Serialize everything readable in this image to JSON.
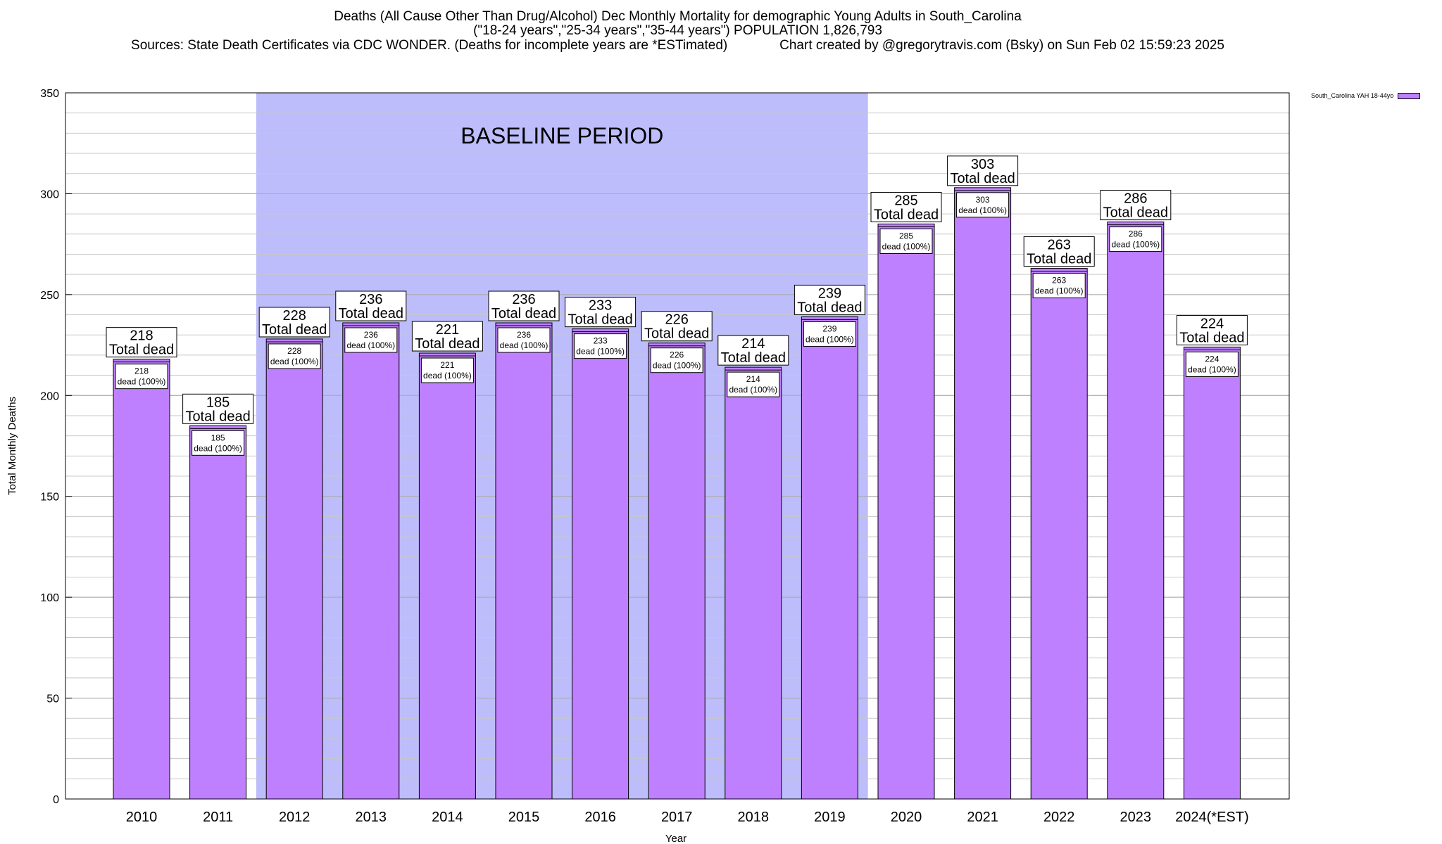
{
  "title": {
    "line1": "Deaths (All Cause Other Than Drug/Alcohol) Dec Monthly Mortality for demographic Young Adults in South_Carolina",
    "line2": "(\"18-24 years\",\"25-34 years\",\"35-44 years\") POPULATION 1,826,793",
    "line3": "Sources: State Death Certificates via CDC WONDER. (Deaths for incomplete years are *ESTimated)              Chart created by @gregorytravis.com (Bsky) on Sun Feb 02 15:59:23 2025"
  },
  "legend": {
    "label": "South_Carolina YAH 18-44yo"
  },
  "colors": {
    "bar": "#bf80ff",
    "baseline": "#bdbdfc",
    "grid": "#c8c8c8",
    "axis": "#000000"
  },
  "chart_data": {
    "type": "bar",
    "title": "Deaths (All Cause Other Than Drug/Alcohol) Dec Monthly Mortality for demographic Young Adults in South_Carolina",
    "xlabel": "Year",
    "ylabel": "Total Monthly Deaths",
    "ylim": [
      0,
      350
    ],
    "yticks": [
      0,
      50,
      100,
      150,
      200,
      250,
      300,
      350
    ],
    "grid": true,
    "legend_position": "top-right",
    "categories": [
      "2010",
      "2011",
      "2012",
      "2013",
      "2014",
      "2015",
      "2016",
      "2017",
      "2018",
      "2019",
      "2020",
      "2021",
      "2022",
      "2023",
      "2024(*EST)"
    ],
    "series": [
      {
        "name": "South_Carolina YAH 18-44yo",
        "values": [
          218,
          185,
          228,
          236,
          221,
          236,
          233,
          226,
          214,
          239,
          285,
          303,
          263,
          286,
          224
        ]
      }
    ],
    "total_label_suffix": "Total dead",
    "inner_label_suffix": "dead (100%)",
    "baseline_period": {
      "label": "BASELINE PERIOD",
      "start": "2012",
      "end": "2019"
    }
  }
}
